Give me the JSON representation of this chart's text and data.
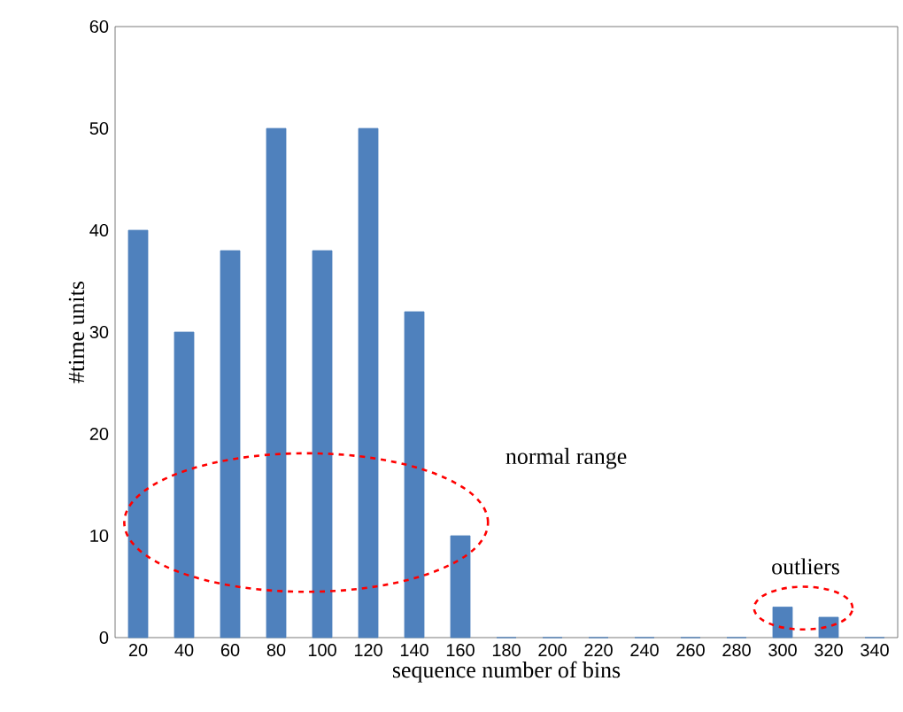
{
  "chart_data": {
    "type": "bar",
    "xlabel": "sequence number of bins",
    "ylabel": "#time units",
    "categories": [
      "20",
      "40",
      "60",
      "80",
      "100",
      "120",
      "140",
      "160",
      "180",
      "200",
      "220",
      "240",
      "260",
      "280",
      "300",
      "320",
      "340"
    ],
    "values": [
      40,
      30,
      38,
      50,
      38,
      50,
      32,
      10,
      0,
      0,
      0,
      0,
      0,
      0,
      3,
      2,
      0
    ],
    "color": "#4f81bd",
    "ylim": [
      0,
      60
    ],
    "yticks": [
      0,
      10,
      20,
      30,
      40,
      50,
      60
    ],
    "annotations": [
      "normal range",
      "outliers"
    ]
  }
}
